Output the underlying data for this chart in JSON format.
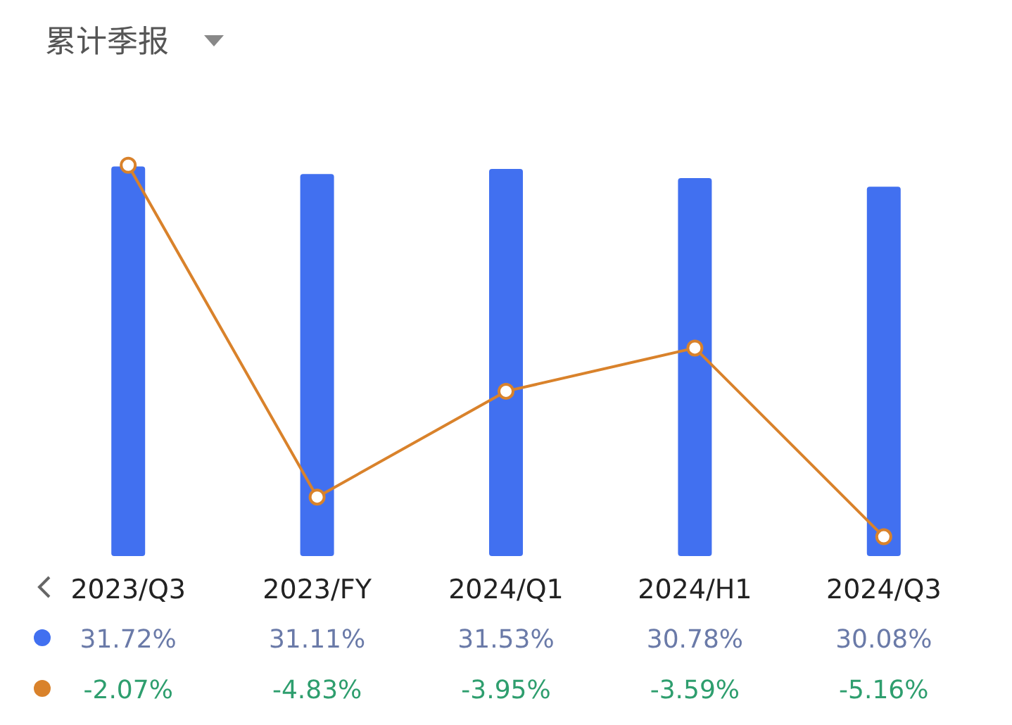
{
  "chart_data": {
    "type": "bar",
    "title": "累计季报",
    "categories": [
      "2023/Q3",
      "2023/FY",
      "2024/Q1",
      "2024/H1",
      "2024/Q3"
    ],
    "series": [
      {
        "color": "#4170f0",
        "values": [
          31.72,
          31.11,
          31.53,
          30.78,
          30.08
        ],
        "value_labels": [
          "31.72%",
          "31.11%",
          "31.53%",
          "30.78%",
          "30.08%"
        ]
      },
      {
        "type": "line",
        "axis": "y2",
        "color": "#d9822b",
        "marker": "circle",
        "values": [
          -2.07,
          -4.83,
          -3.95,
          -3.59,
          -5.16
        ],
        "value_labels": [
          "-2.07%",
          "-4.83%",
          "-3.95%",
          "-3.59%",
          "-5.16%"
        ]
      }
    ],
    "tick_labels": "x"
  }
}
